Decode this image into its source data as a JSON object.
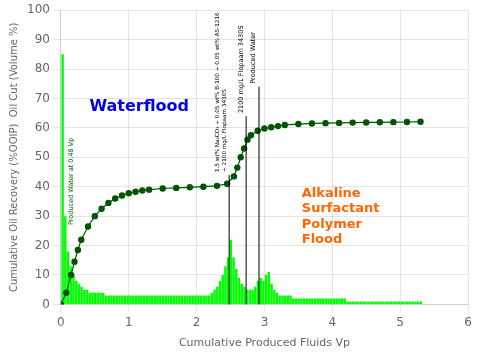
{
  "chart_data": {
    "type": "bar",
    "x_label": "Cumulative Produced Fluids Vp",
    "y_label": "Cumulative Oil Recovery (%OOIP)  Oil Cut (Volume %)",
    "xlim": [
      0,
      6
    ],
    "ylim": [
      0,
      100
    ],
    "xticks": [
      0,
      1,
      2,
      3,
      4,
      5,
      6
    ],
    "yticks": [
      0,
      10,
      20,
      30,
      40,
      50,
      60,
      70,
      80,
      90,
      100
    ],
    "grid": true,
    "series": [
      {
        "type": "bar",
        "color": "#00ff00",
        "x": [
          0.025,
          0.065,
          0.105,
          0.145,
          0.185,
          0.225,
          0.265,
          0.305,
          0.345,
          0.385,
          0.425,
          0.465,
          0.505,
          0.545,
          0.585,
          0.625,
          0.665,
          0.705,
          0.745,
          0.785,
          0.825,
          0.865,
          0.905,
          0.945,
          0.985,
          1.025,
          1.065,
          1.105,
          1.145,
          1.185,
          1.225,
          1.265,
          1.305,
          1.345,
          1.385,
          1.425,
          1.465,
          1.505,
          1.545,
          1.585,
          1.625,
          1.665,
          1.705,
          1.745,
          1.785,
          1.825,
          1.865,
          1.905,
          1.945,
          1.985,
          2.025,
          2.065,
          2.105,
          2.145,
          2.185,
          2.225,
          2.265,
          2.305,
          2.345,
          2.385,
          2.425,
          2.465,
          2.505,
          2.545,
          2.585,
          2.625,
          2.665,
          2.705,
          2.745,
          2.785,
          2.825,
          2.865,
          2.905,
          2.945,
          2.985,
          3.025,
          3.065,
          3.105,
          3.145,
          3.185,
          3.225,
          3.265,
          3.305,
          3.345,
          3.385,
          3.425,
          3.465,
          3.505,
          3.545,
          3.585,
          3.625,
          3.665,
          3.705,
          3.745,
          3.785,
          3.825,
          3.865,
          3.905,
          3.945,
          3.985,
          4.025,
          4.065,
          4.105,
          4.145,
          4.185,
          4.225,
          4.265,
          4.305,
          4.345,
          4.385,
          4.425,
          4.465,
          4.505,
          4.545,
          4.585,
          4.625,
          4.665,
          4.705,
          4.745,
          4.785,
          4.825,
          4.865,
          4.905,
          4.945,
          4.985,
          5.025,
          5.065,
          5.105,
          5.145,
          5.185,
          5.225,
          5.265,
          5.305
        ],
        "values": [
          85,
          30,
          18,
          13,
          10,
          8,
          7,
          6,
          5,
          5,
          4,
          4,
          4,
          4,
          4,
          4,
          3,
          3,
          3,
          3,
          3,
          3,
          3,
          3,
          3,
          3,
          3,
          3,
          3,
          3,
          3,
          3,
          3,
          3,
          3,
          3,
          3,
          3,
          3,
          3,
          3,
          3,
          3,
          3,
          3,
          3,
          3,
          3,
          3,
          3,
          3,
          3,
          3,
          3,
          3,
          4,
          5,
          6,
          8,
          10,
          13,
          16,
          22,
          16,
          12,
          9,
          7,
          6,
          5,
          5,
          5,
          6,
          8,
          9,
          8,
          10,
          11,
          7,
          5,
          4,
          3,
          3,
          3,
          3,
          3,
          2,
          2,
          2,
          2,
          2,
          2,
          2,
          2,
          2,
          2,
          2,
          2,
          2,
          2,
          2,
          2,
          2,
          2,
          2,
          2,
          1,
          1,
          1,
          1,
          1,
          1,
          1,
          1,
          1,
          1,
          1,
          1,
          1,
          1,
          1,
          1,
          1,
          1,
          1,
          1,
          1,
          1,
          1,
          1,
          1,
          1,
          1,
          1
        ]
      },
      {
        "type": "line",
        "color": "#005500",
        "marker": "circle",
        "line_style": "solid",
        "x": [
          0.0,
          0.08,
          0.15,
          0.2,
          0.25,
          0.3,
          0.4,
          0.5,
          0.6,
          0.7,
          0.8,
          0.9,
          1.0,
          1.1,
          1.2,
          1.3,
          1.5,
          1.7,
          1.9,
          2.1,
          2.3,
          2.45,
          2.55,
          2.6,
          2.65,
          2.7,
          2.75,
          2.8,
          2.9,
          3.0,
          3.1,
          3.2,
          3.3,
          3.5,
          3.7,
          3.9,
          4.1,
          4.3,
          4.5,
          4.7,
          4.9,
          5.1,
          5.3
        ],
        "values": [
          0.0,
          4.0,
          10.0,
          14.5,
          18.5,
          22.0,
          26.5,
          30.0,
          32.5,
          34.5,
          36.0,
          37.0,
          37.8,
          38.3,
          38.7,
          39.0,
          39.4,
          39.6,
          39.8,
          40.0,
          40.3,
          41.0,
          43.5,
          46.5,
          50.0,
          53.0,
          56.0,
          57.5,
          59.0,
          59.8,
          60.2,
          60.6,
          61.0,
          61.3,
          61.5,
          61.6,
          61.7,
          61.8,
          61.85,
          61.9,
          61.95,
          62.0,
          62.1
        ]
      }
    ],
    "vlines": [
      {
        "x": 2.48,
        "y": 44,
        "text": "1.5 wt% Na₂CO₃ + 0.05 wt% B-100 + 0.05 wt% AS-1216\n+ 2100 mg/L Flopaam 3430S"
      },
      {
        "x": 2.73,
        "y": 64,
        "text": "2100 mg/L Flopaam 3430S"
      },
      {
        "x": 2.92,
        "y": 74,
        "text": "Produced Water"
      }
    ],
    "annotations": [
      {
        "text": "Waterflood",
        "x": 0.42,
        "y": 70,
        "color": "#0000ee"
      },
      {
        "text": "Alkaline\nSurfactant\nPolymer\nFlood",
        "x": 3.55,
        "y": 40,
        "color": "#ff6600"
      }
    ],
    "notes": [
      {
        "text": "Produced Water at 0.48 Vp",
        "x": 0.1,
        "y": 27,
        "color": "#006600"
      }
    ]
  }
}
